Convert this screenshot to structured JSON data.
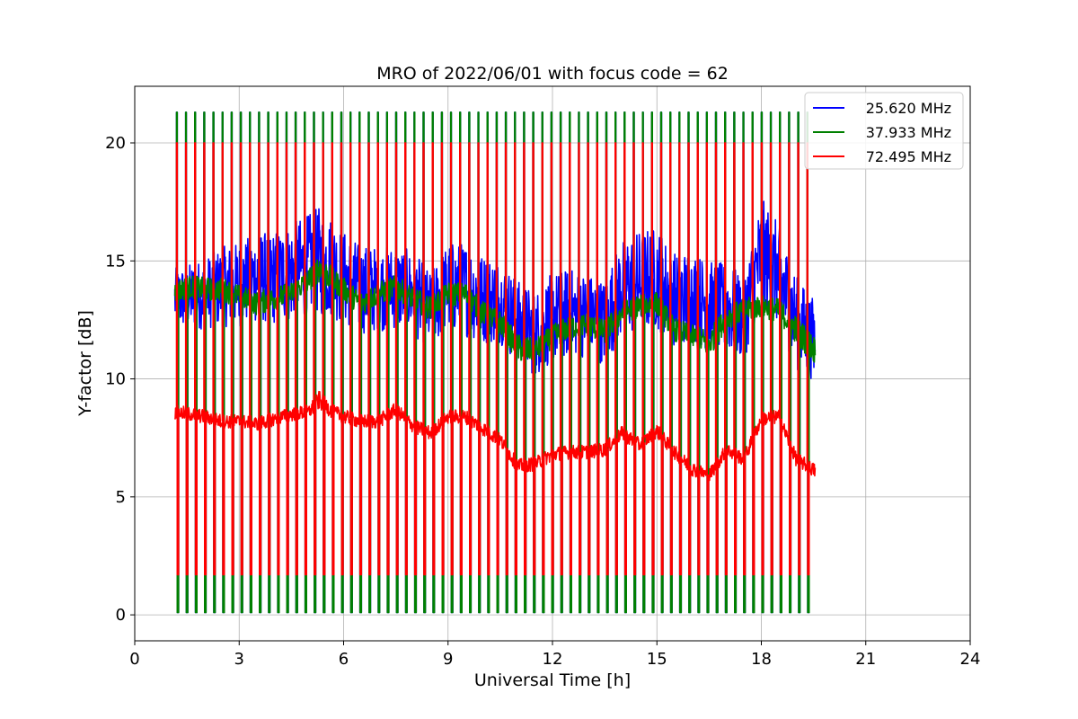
{
  "chart_data": {
    "type": "line",
    "title": "MRO of 2022/06/01 with focus code = 62",
    "xlabel": "Universal Time [h]",
    "ylabel": "Y-factor [dB]",
    "xlim": [
      0,
      24
    ],
    "ylim": [
      -1.1,
      22.4
    ],
    "xticks": [
      0,
      3,
      6,
      9,
      12,
      15,
      18,
      21,
      24
    ],
    "yticks": [
      0,
      5,
      10,
      15,
      20
    ],
    "grid": true,
    "legend_position": "top-right",
    "calibration": {
      "t_start": 1.15,
      "t_end": 19.55,
      "period_h": 0.2625,
      "peak_values": {
        "25.620 MHz": 21.3,
        "37.933 MHz": 21.3,
        "72.495 MHz": 20.0
      },
      "low_values": {
        "25.620 MHz": 0.1,
        "37.933 MHz": 0.1,
        "72.495 MHz": 1.7
      }
    },
    "series": [
      {
        "name": "25.620 MHz",
        "color": "#0000ff",
        "x": [
          1.15,
          1.6,
          2.0,
          2.5,
          3.0,
          3.5,
          4.0,
          4.5,
          5.0,
          5.3,
          5.7,
          6.0,
          6.5,
          7.0,
          7.5,
          8.0,
          8.5,
          9.0,
          9.5,
          10.0,
          10.5,
          11.0,
          11.5,
          12.0,
          12.5,
          13.0,
          13.5,
          14.0,
          14.5,
          15.0,
          15.5,
          16.0,
          16.5,
          17.0,
          17.5,
          18.0,
          18.5,
          19.0,
          19.55
        ],
        "y": [
          13.4,
          13.5,
          13.6,
          13.9,
          14.0,
          14.3,
          14.3,
          14.5,
          14.8,
          15.0,
          14.7,
          14.3,
          13.8,
          13.8,
          13.9,
          13.6,
          12.9,
          13.9,
          13.8,
          13.4,
          13.3,
          12.4,
          11.9,
          12.6,
          12.8,
          12.7,
          12.4,
          13.9,
          14.1,
          14.3,
          13.4,
          13.5,
          13.1,
          13.0,
          12.6,
          15.3,
          14.4,
          12.4,
          11.6
        ],
        "amplitude": [
          1.3,
          1.4,
          1.5,
          1.7,
          1.8,
          1.9,
          2.0,
          2.1,
          2.2,
          2.3,
          2.2,
          2.0,
          1.9,
          1.8,
          1.8,
          1.8,
          1.6,
          1.9,
          2.0,
          1.9,
          1.8,
          1.8,
          1.8,
          1.9,
          1.9,
          1.8,
          1.8,
          2.1,
          2.2,
          2.2,
          2.0,
          2.0,
          1.9,
          1.9,
          1.8,
          2.4,
          2.2,
          2.0,
          1.7
        ]
      },
      {
        "name": "37.933 MHz",
        "color": "#008000",
        "x": [
          1.15,
          1.6,
          2.0,
          2.5,
          3.0,
          3.5,
          4.0,
          4.5,
          5.0,
          5.3,
          5.7,
          6.0,
          6.5,
          7.0,
          7.5,
          8.0,
          8.5,
          9.0,
          9.5,
          10.0,
          10.5,
          11.0,
          11.5,
          12.0,
          12.5,
          13.0,
          13.5,
          14.0,
          14.5,
          15.0,
          15.5,
          16.0,
          16.5,
          17.0,
          17.5,
          18.0,
          18.5,
          19.0,
          19.55
        ],
        "y": [
          13.7,
          13.9,
          13.8,
          13.8,
          13.5,
          13.2,
          13.4,
          13.6,
          14.2,
          14.7,
          14.2,
          13.8,
          13.2,
          13.6,
          13.9,
          13.4,
          13.0,
          13.6,
          13.6,
          12.8,
          12.4,
          11.3,
          11.2,
          11.8,
          12.2,
          12.3,
          12.0,
          12.8,
          13.1,
          13.2,
          12.1,
          11.8,
          11.5,
          12.6,
          12.9,
          13.1,
          12.9,
          12.1,
          11.2
        ],
        "amplitude": [
          0.5,
          0.5,
          0.5,
          0.5,
          0.5,
          0.5,
          0.5,
          0.5,
          0.5,
          0.6,
          0.5,
          0.5,
          0.5,
          0.5,
          0.5,
          0.5,
          0.5,
          0.5,
          0.5,
          0.5,
          0.5,
          0.6,
          0.5,
          0.5,
          0.5,
          0.5,
          0.5,
          0.5,
          0.5,
          0.5,
          0.5,
          0.5,
          0.6,
          0.5,
          0.5,
          0.5,
          0.5,
          0.6,
          0.6
        ]
      },
      {
        "name": "72.495 MHz",
        "color": "#ff0000",
        "x": [
          1.15,
          1.6,
          2.0,
          2.5,
          3.0,
          3.5,
          4.0,
          4.5,
          5.0,
          5.3,
          5.7,
          6.0,
          6.5,
          7.0,
          7.5,
          8.0,
          8.5,
          9.0,
          9.5,
          10.0,
          10.5,
          11.0,
          11.5,
          12.0,
          12.5,
          13.0,
          13.5,
          14.0,
          14.5,
          15.0,
          15.5,
          16.0,
          16.5,
          17.0,
          17.5,
          18.0,
          18.5,
          19.0,
          19.55
        ],
        "y": [
          8.6,
          8.5,
          8.4,
          8.2,
          8.2,
          8.1,
          8.3,
          8.5,
          8.6,
          9.1,
          8.6,
          8.4,
          8.2,
          8.2,
          8.7,
          8.0,
          7.7,
          8.4,
          8.4,
          7.9,
          7.4,
          6.3,
          6.4,
          6.8,
          6.9,
          6.9,
          7.0,
          7.7,
          7.2,
          7.8,
          6.9,
          6.2,
          5.9,
          7.0,
          6.6,
          8.3,
          8.4,
          6.6,
          6.1
        ],
        "amplitude": [
          0.3,
          0.3,
          0.3,
          0.3,
          0.3,
          0.3,
          0.3,
          0.3,
          0.3,
          0.4,
          0.3,
          0.3,
          0.3,
          0.3,
          0.3,
          0.3,
          0.3,
          0.3,
          0.3,
          0.3,
          0.3,
          0.3,
          0.3,
          0.3,
          0.3,
          0.3,
          0.3,
          0.3,
          0.3,
          0.3,
          0.3,
          0.3,
          0.3,
          0.3,
          0.3,
          0.3,
          0.3,
          0.3,
          0.3
        ]
      }
    ]
  }
}
